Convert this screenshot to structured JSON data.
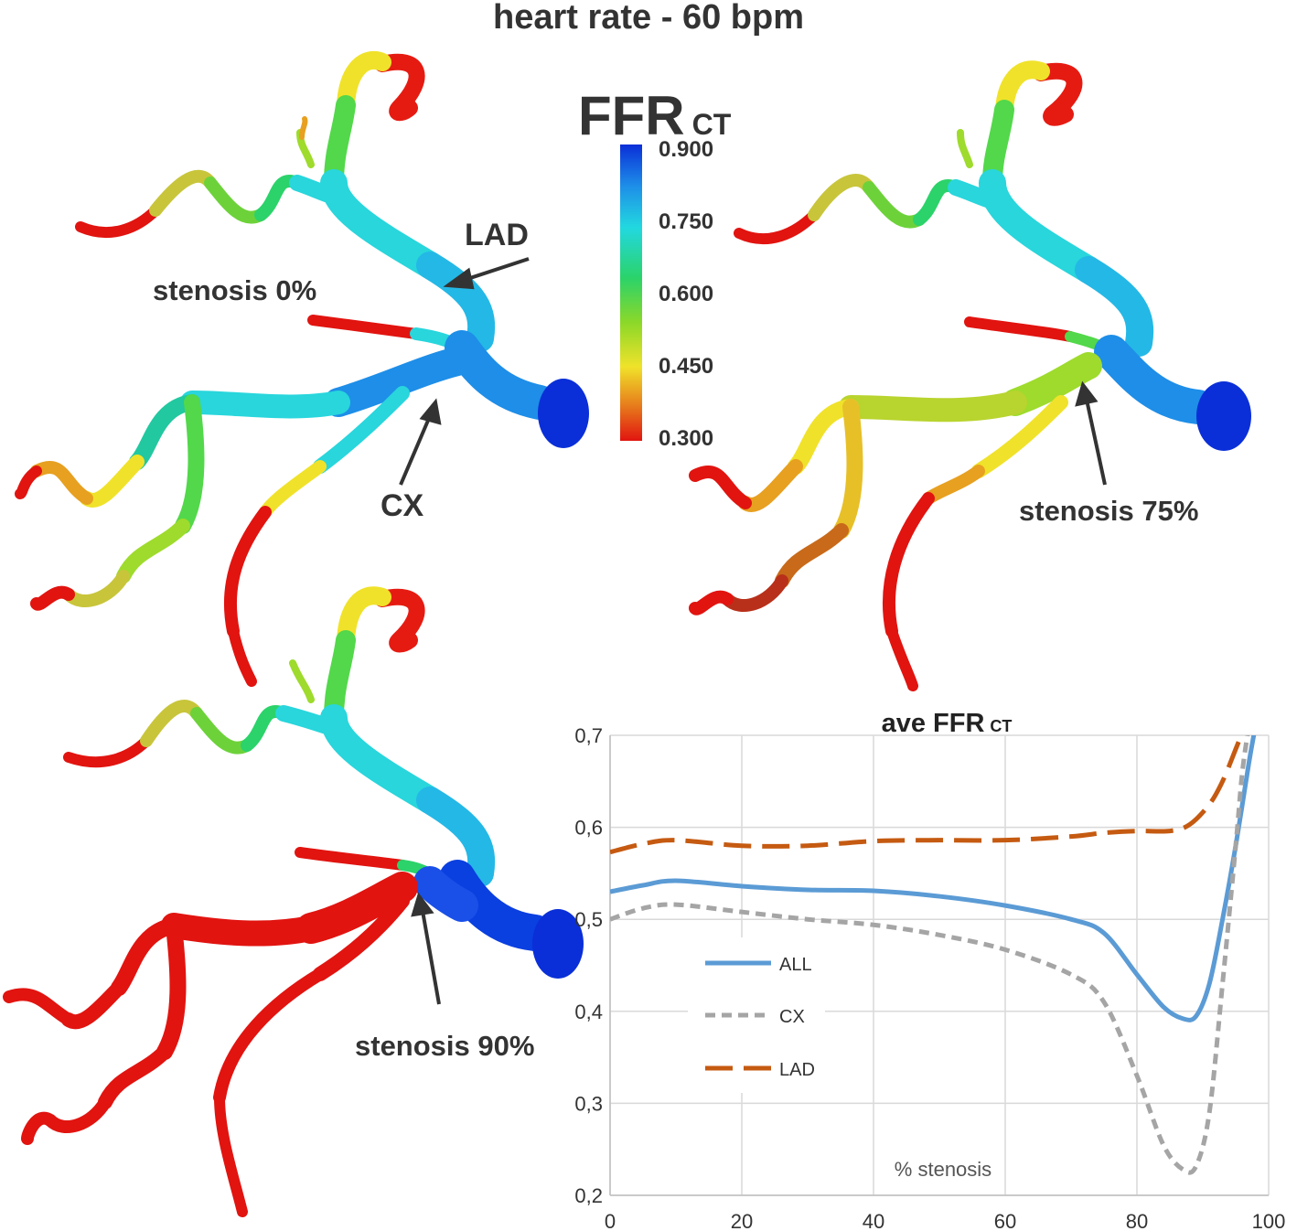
{
  "title": "heart rate - 60 bpm",
  "colorbar": {
    "title_main": "FFR",
    "title_sub": "CT",
    "ticks": [
      "0.900",
      "0.750",
      "0.600",
      "0.450",
      "0.300"
    ],
    "min": 0.3,
    "max": 0.9,
    "colors": [
      "#0a2fd8",
      "#1e8ee8",
      "#22d8e0",
      "#2bd36a",
      "#8bd829",
      "#f0e22a",
      "#e77d1c",
      "#e11410"
    ]
  },
  "panels": [
    {
      "label": "stenosis 0%",
      "vessel_labels": [
        "LAD",
        "CX"
      ]
    },
    {
      "label": "stenosis 75%"
    },
    {
      "label": "stenosis 90%"
    }
  ],
  "chart_data": {
    "type": "line",
    "title": "ave FFR",
    "title_sub": "CT",
    "xlabel": "% stenosis",
    "ylabel": "",
    "xlim": [
      0,
      100
    ],
    "ylim": [
      0.2,
      0.7
    ],
    "x_ticks": [
      "0",
      "20",
      "40",
      "60",
      "80",
      "100"
    ],
    "y_ticks": [
      "0,2",
      "0,3",
      "0,4",
      "0,5",
      "0,6",
      "0,7"
    ],
    "grid": true,
    "legend_position": "left",
    "series": [
      {
        "name": "ALL",
        "color": "#5b9bd5",
        "dash": "solid",
        "x": [
          0,
          5,
          10,
          20,
          30,
          40,
          50,
          60,
          70,
          75,
          80,
          84,
          87,
          89,
          91,
          93,
          95,
          97,
          98
        ],
        "y": [
          0.53,
          0.537,
          0.542,
          0.536,
          0.532,
          0.531,
          0.525,
          0.515,
          0.5,
          0.485,
          0.44,
          0.405,
          0.392,
          0.395,
          0.43,
          0.5,
          0.58,
          0.67,
          0.71
        ]
      },
      {
        "name": "CX",
        "color": "#a5a5a5",
        "dash": "short",
        "x": [
          0,
          5,
          10,
          20,
          30,
          40,
          50,
          60,
          70,
          75,
          80,
          84,
          87,
          89,
          91,
          93,
          95,
          96,
          97
        ],
        "y": [
          0.5,
          0.512,
          0.516,
          0.508,
          0.5,
          0.494,
          0.483,
          0.467,
          0.44,
          0.41,
          0.33,
          0.255,
          0.228,
          0.232,
          0.29,
          0.43,
          0.58,
          0.66,
          0.71
        ]
      },
      {
        "name": "LAD",
        "color": "#c55a11",
        "dash": "long",
        "x": [
          0,
          5,
          10,
          20,
          30,
          40,
          50,
          60,
          70,
          75,
          80,
          85,
          88,
          91,
          93,
          95,
          96.5
        ],
        "y": [
          0.573,
          0.582,
          0.586,
          0.58,
          0.58,
          0.585,
          0.586,
          0.586,
          0.59,
          0.594,
          0.596,
          0.596,
          0.603,
          0.625,
          0.65,
          0.685,
          0.712
        ]
      }
    ]
  }
}
